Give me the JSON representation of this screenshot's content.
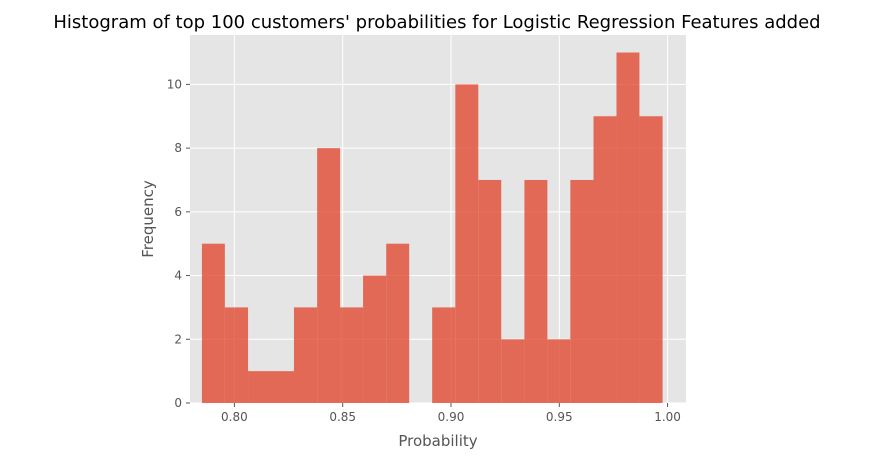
{
  "chart_data": {
    "type": "bar",
    "subtype": "histogram",
    "title": "Histogram of top 100 customers' probabilities for Logistic Regression Features added",
    "xlabel": "Probability",
    "ylabel": "Frequency",
    "xlim": [
      0.7795,
      1.0085
    ],
    "ylim": [
      0,
      11.55
    ],
    "xticks": [
      0.8,
      0.85,
      0.9,
      0.95,
      1.0
    ],
    "xtick_labels": [
      "0.80",
      "0.85",
      "0.90",
      "0.95",
      "1.00"
    ],
    "yticks": [
      0,
      2,
      4,
      6,
      8,
      10
    ],
    "ytick_labels": [
      "0",
      "2",
      "4",
      "6",
      "8",
      "10"
    ],
    "grid": true,
    "background": "#E5E5E5",
    "bar_color": "#E24A33",
    "bins": [
      {
        "x0": 0.785,
        "x1": 0.7956,
        "count": 5
      },
      {
        "x0": 0.7956,
        "x1": 0.8063,
        "count": 3
      },
      {
        "x0": 0.8063,
        "x1": 0.8169,
        "count": 1
      },
      {
        "x0": 0.8169,
        "x1": 0.8275,
        "count": 1
      },
      {
        "x0": 0.8275,
        "x1": 0.8382,
        "count": 3
      },
      {
        "x0": 0.8382,
        "x1": 0.8488,
        "count": 8
      },
      {
        "x0": 0.8488,
        "x1": 0.8594,
        "count": 3
      },
      {
        "x0": 0.8594,
        "x1": 0.8701,
        "count": 4
      },
      {
        "x0": 0.8701,
        "x1": 0.8807,
        "count": 5
      },
      {
        "x0": 0.8807,
        "x1": 0.8913,
        "count": 0
      },
      {
        "x0": 0.8913,
        "x1": 0.902,
        "count": 3
      },
      {
        "x0": 0.902,
        "x1": 0.9126,
        "count": 10
      },
      {
        "x0": 0.9126,
        "x1": 0.9232,
        "count": 7
      },
      {
        "x0": 0.9232,
        "x1": 0.9339,
        "count": 2
      },
      {
        "x0": 0.9339,
        "x1": 0.9445,
        "count": 7
      },
      {
        "x0": 0.9445,
        "x1": 0.9551,
        "count": 2
      },
      {
        "x0": 0.9551,
        "x1": 0.9658,
        "count": 7
      },
      {
        "x0": 0.9658,
        "x1": 0.9764,
        "count": 9
      },
      {
        "x0": 0.9764,
        "x1": 0.987,
        "count": 11
      },
      {
        "x0": 0.987,
        "x1": 0.9977,
        "count": 9
      }
    ]
  }
}
